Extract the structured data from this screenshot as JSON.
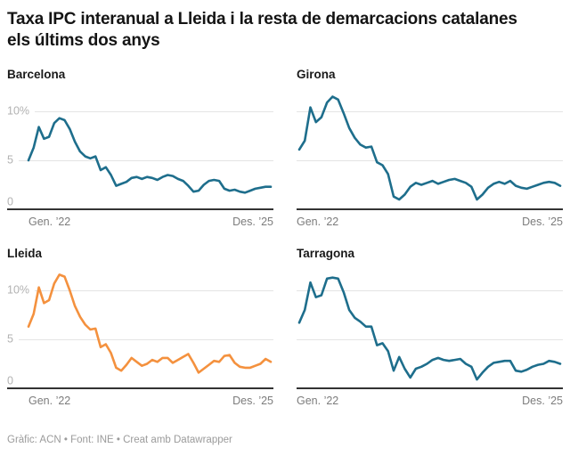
{
  "header": {
    "title": "Taxa IPC interanual a Lleida i la resta de demarcacions catalanes els últims dos anys"
  },
  "footer": {
    "credits": "Gràfic: ACN • Font: INE • Creat amb Datawrapper"
  },
  "axes": {
    "y_ticks": {
      "ten": "10%",
      "five": "5",
      "zero": "0"
    },
    "x_start": "Gen. ’22",
    "x_end": "Des. ’25"
  },
  "colors": {
    "base_line": "#1e6e8c",
    "highlight_line": "#f4913e",
    "gridline": "#e4e4e4",
    "axis": "#333333",
    "tick_text": "#b2b2b2",
    "date_text": "#7c7c7c"
  },
  "chart_data": {
    "type": "line",
    "unit": "%",
    "title": "Taxa IPC interanual a Lleida i la resta de demarcacions catalanes els últims dos anys",
    "x_frequency": "monthly",
    "x_range": [
      "Gen. ’22",
      "Des. ’25"
    ],
    "ylim": [
      0,
      12.2
    ],
    "y_gridlines": [
      0,
      5,
      10
    ],
    "legend_position": "none",
    "grid": true,
    "panels": [
      {
        "name": "Barcelona",
        "color": "#1e6e8c",
        "values": [
          5.0,
          6.3,
          8.4,
          7.2,
          7.4,
          8.8,
          9.3,
          9.1,
          8.2,
          6.9,
          5.9,
          5.4,
          5.2,
          5.4,
          4.0,
          4.3,
          3.5,
          2.4,
          2.6,
          2.8,
          3.2,
          3.3,
          3.1,
          3.3,
          3.2,
          3.0,
          3.3,
          3.5,
          3.4,
          3.1,
          2.9,
          2.4,
          1.8,
          1.9,
          2.5,
          2.9,
          3.0,
          2.9,
          2.1,
          1.9,
          2.0,
          1.8,
          1.7,
          1.9,
          2.1,
          2.2,
          2.3,
          2.3
        ]
      },
      {
        "name": "Girona",
        "color": "#1e6e8c",
        "values": [
          6.1,
          7.0,
          10.4,
          8.9,
          9.4,
          10.9,
          11.5,
          11.2,
          9.8,
          8.3,
          7.3,
          6.6,
          6.3,
          6.4,
          4.8,
          4.5,
          3.6,
          1.3,
          1.0,
          1.5,
          2.3,
          2.7,
          2.5,
          2.7,
          2.9,
          2.6,
          2.8,
          3.0,
          3.1,
          2.9,
          2.7,
          2.3,
          1.0,
          1.5,
          2.2,
          2.6,
          2.8,
          2.6,
          2.9,
          2.4,
          2.2,
          2.1,
          2.3,
          2.5,
          2.7,
          2.8,
          2.7,
          2.4
        ]
      },
      {
        "name": "Lleida",
        "color": "#f4913e",
        "values": [
          6.3,
          7.6,
          10.3,
          8.7,
          9.0,
          10.7,
          11.6,
          11.4,
          10.0,
          8.4,
          7.3,
          6.5,
          6.0,
          6.1,
          4.2,
          4.5,
          3.6,
          2.1,
          1.8,
          2.4,
          3.1,
          2.7,
          2.3,
          2.5,
          2.9,
          2.7,
          3.1,
          3.1,
          2.6,
          2.9,
          3.2,
          3.5,
          2.6,
          1.6,
          2.0,
          2.4,
          2.8,
          2.7,
          3.3,
          3.4,
          2.6,
          2.2,
          2.1,
          2.1,
          2.3,
          2.5,
          3.0,
          2.7
        ]
      },
      {
        "name": "Tarragona",
        "color": "#1e6e8c",
        "values": [
          6.7,
          8.0,
          10.8,
          9.3,
          9.5,
          11.2,
          11.3,
          11.2,
          9.8,
          8.0,
          7.2,
          6.8,
          6.3,
          6.3,
          4.4,
          4.6,
          3.8,
          1.8,
          3.2,
          2.0,
          1.1,
          2.0,
          2.2,
          2.5,
          2.9,
          3.1,
          2.9,
          2.8,
          2.9,
          3.0,
          2.5,
          2.2,
          0.9,
          1.6,
          2.2,
          2.6,
          2.7,
          2.8,
          2.8,
          1.8,
          1.7,
          1.9,
          2.2,
          2.4,
          2.5,
          2.8,
          2.7,
          2.5
        ]
      }
    ]
  }
}
